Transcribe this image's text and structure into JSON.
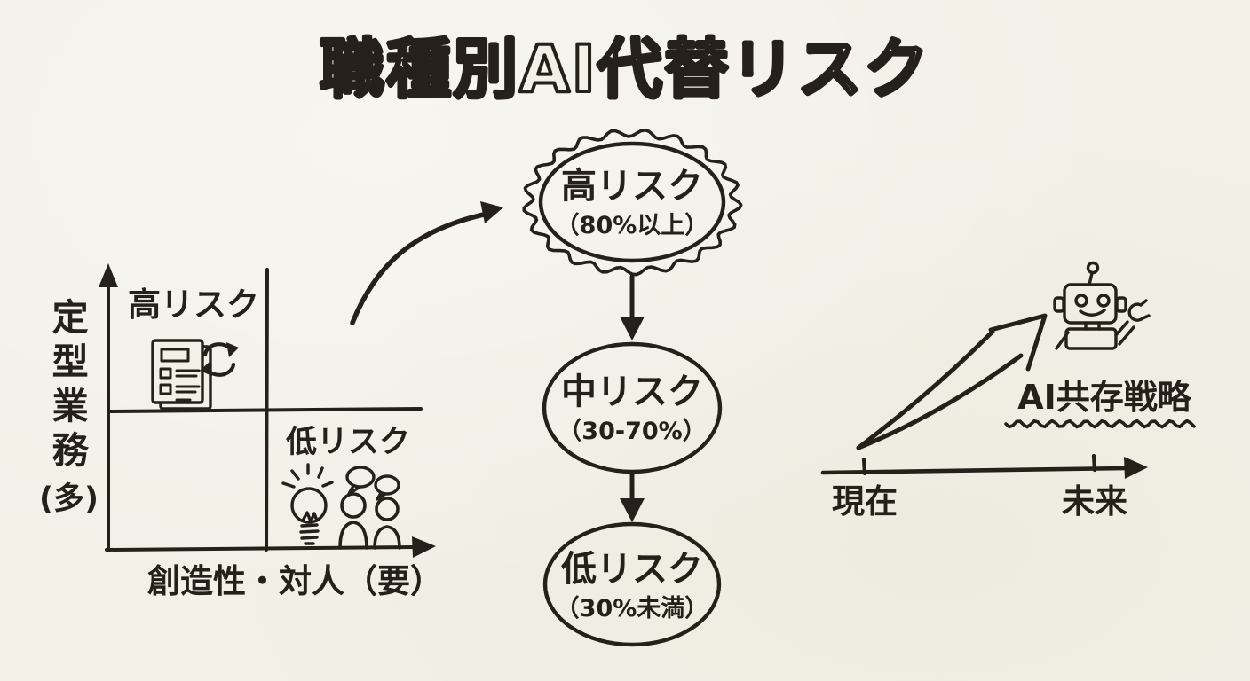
{
  "title": "職種別AI代替リスク",
  "colors": {
    "paper": "#f2f0e7",
    "ink": "#25211a"
  },
  "quadrant_chart": {
    "y_axis_label": "定型業務",
    "y_axis_qualifier": "(多)",
    "x_axis_label": "創造性・対人（要）",
    "quadrant_high_label": "高リスク",
    "quadrant_low_label": "低リスク"
  },
  "flowchart": {
    "nodes": [
      {
        "label": "高リスク",
        "range": "（80%以上）"
      },
      {
        "label": "中リスク",
        "range": "（30-70%）"
      },
      {
        "label": "低リスク",
        "range": "（30%未満）"
      }
    ]
  },
  "future_section": {
    "now_label": "現在",
    "future_label": "未来",
    "strategy_label": "AI共存戦略"
  }
}
